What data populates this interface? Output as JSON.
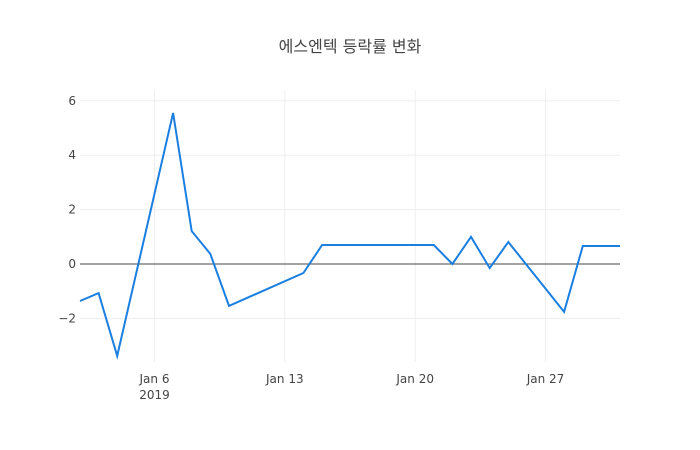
{
  "title": "에스엔텍 등락률 변화",
  "colors": {
    "line": "#1a7fe0",
    "grid": "#eeeeee",
    "zeroline": "#444444",
    "text": "#444444"
  },
  "chart_data": {
    "type": "line",
    "title": "에스엔텍 등락률 변화",
    "xlabel": "",
    "ylabel": "",
    "x": [
      "2019-01-02",
      "2019-01-03",
      "2019-01-04",
      "2019-01-07",
      "2019-01-08",
      "2019-01-09",
      "2019-01-10",
      "2019-01-14",
      "2019-01-15",
      "2019-01-16",
      "2019-01-17",
      "2019-01-18",
      "2019-01-21",
      "2019-01-22",
      "2019-01-23",
      "2019-01-24",
      "2019-01-25",
      "2019-01-28",
      "2019-01-29",
      "2019-01-30",
      "2019-01-31"
    ],
    "series": [
      {
        "name": "등락률",
        "values": [
          -1.36,
          -1.07,
          -3.38,
          5.55,
          1.21,
          0.37,
          -1.54,
          -0.33,
          0.7,
          0.7,
          0.7,
          0.7,
          0.7,
          0.0,
          1.0,
          -0.15,
          0.81,
          -1.76,
          0.66,
          0.66,
          0.66
        ]
      }
    ],
    "x_ticks": [
      {
        "date": "2019-01-06",
        "label": "Jan 6",
        "sublabel": "2019"
      },
      {
        "date": "2019-01-13",
        "label": "Jan 13",
        "sublabel": ""
      },
      {
        "date": "2019-01-20",
        "label": "Jan 20",
        "sublabel": ""
      },
      {
        "date": "2019-01-27",
        "label": "Jan 27",
        "sublabel": ""
      }
    ],
    "y_ticks": [
      -2,
      0,
      2,
      4,
      6
    ],
    "y_tick_labels": [
      "−2",
      "0",
      "2",
      "4",
      "6"
    ],
    "xlim": [
      "2019-01-02",
      "2019-01-31"
    ],
    "ylim": [
      -3.6,
      6.4
    ],
    "grid": true,
    "legend": "none"
  }
}
